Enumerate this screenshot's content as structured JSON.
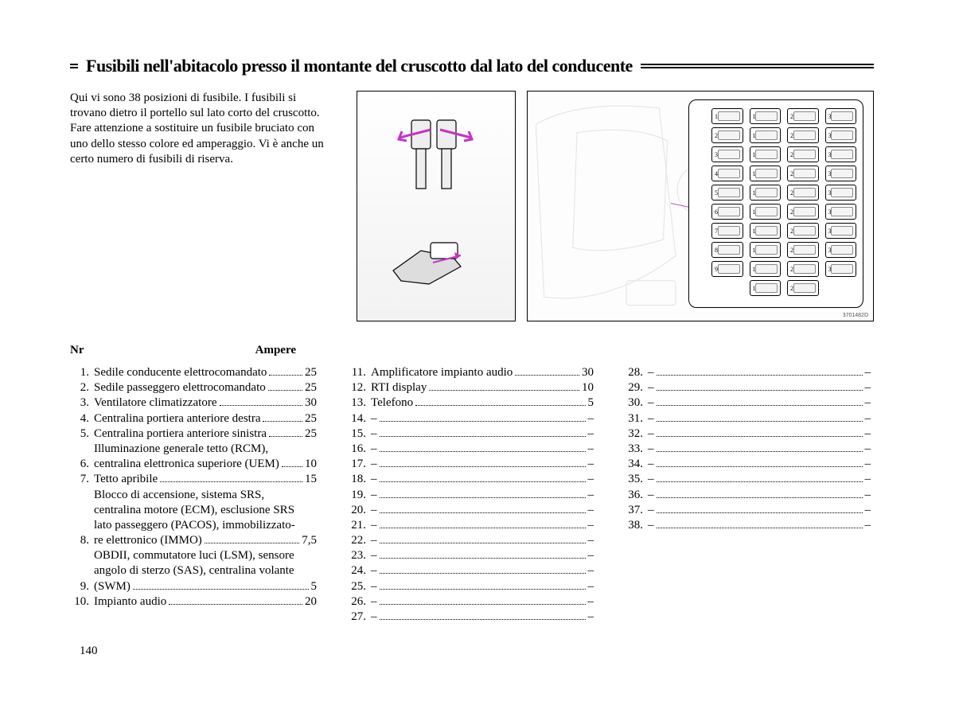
{
  "heading": "Fusibili nell'abitacolo presso il montante del cruscotto dal lato del conducente",
  "intro": "Qui vi sono 38 posizioni di fusibile. I fusibili si trovano dietro il portello sul lato corto del cruscotto. Fare attenzione a sostituire un fusibile bruciato con uno dello stesso colore ed amperaggio. Vi è anche un certo numero di fusibili di riserva.",
  "table_header": {
    "nr": "Nr",
    "ampere": "Ampere"
  },
  "page_number": "140",
  "diagram_id": "3701482D",
  "diagram": {
    "accent_color": "#c733c7",
    "fusebox_numbers": [
      [
        1,
        10,
        20,
        30
      ],
      [
        2,
        11,
        21,
        31
      ],
      [
        3,
        12,
        22,
        32
      ],
      [
        4,
        13,
        23,
        33
      ],
      [
        5,
        14,
        24,
        34
      ],
      [
        6,
        15,
        25,
        35
      ],
      [
        7,
        16,
        26,
        36
      ],
      [
        8,
        17,
        27,
        37
      ],
      [
        9,
        18,
        28,
        38
      ],
      [
        null,
        19,
        29,
        null
      ]
    ]
  },
  "fuses": {
    "col1": [
      {
        "n": "1.",
        "lines": [],
        "last": "Sedile conducente elettrocomandato",
        "v": "25"
      },
      {
        "n": "2.",
        "lines": [],
        "last": "Sedile passeggero elettrocomandato",
        "v": "25"
      },
      {
        "n": "3.",
        "lines": [],
        "last": "Ventilatore climatizzatore",
        "v": "30"
      },
      {
        "n": "4.",
        "lines": [],
        "last": "Centralina portiera anteriore destra",
        "v": "25"
      },
      {
        "n": "5.",
        "lines": [],
        "last": "Centralina portiera anteriore sinistra",
        "v": "25"
      },
      {
        "n": "6.",
        "lines": [
          "Illuminazione generale tetto (RCM),"
        ],
        "last": "centralina elettronica superiore (UEM)",
        "v": "10"
      },
      {
        "n": "7.",
        "lines": [],
        "last": "Tetto apribile",
        "v": "15"
      },
      {
        "n": "8.",
        "lines": [
          "Blocco di accensione, sistema SRS,",
          "centralina motore (ECM), esclusione SRS",
          "lato passeggero (PACOS), immobilizzato-"
        ],
        "last": "re elettronico (IMMO)",
        "v": "7,5"
      },
      {
        "n": "9.",
        "lines": [
          "OBDII, commutatore luci (LSM), sensore",
          "angolo di sterzo (SAS), centralina volante"
        ],
        "last": "(SWM)",
        "v": "5"
      },
      {
        "n": "10.",
        "lines": [],
        "last": "Impianto audio",
        "v": "20"
      }
    ],
    "col2": [
      {
        "n": "11.",
        "lines": [],
        "last": "Amplificatore impianto audio",
        "v": "30"
      },
      {
        "n": "12.",
        "lines": [],
        "last": "RTI display",
        "v": "10"
      },
      {
        "n": "13.",
        "lines": [],
        "last": "Telefono",
        "v": "5"
      },
      {
        "n": "14.",
        "lines": [],
        "last": "–",
        "v": "–"
      },
      {
        "n": "15.",
        "lines": [],
        "last": "–",
        "v": "–"
      },
      {
        "n": "16.",
        "lines": [],
        "last": "–",
        "v": "–"
      },
      {
        "n": "17.",
        "lines": [],
        "last": "–",
        "v": "–"
      },
      {
        "n": "18.",
        "lines": [],
        "last": "–",
        "v": "–"
      },
      {
        "n": "19.",
        "lines": [],
        "last": "–",
        "v": "–"
      },
      {
        "n": "20.",
        "lines": [],
        "last": "–",
        "v": "–"
      },
      {
        "n": "21.",
        "lines": [],
        "last": "–",
        "v": "–"
      },
      {
        "n": "22.",
        "lines": [],
        "last": "–",
        "v": "–"
      },
      {
        "n": "23.",
        "lines": [],
        "last": "–",
        "v": "–"
      },
      {
        "n": "24.",
        "lines": [],
        "last": "–",
        "v": "–"
      },
      {
        "n": "25.",
        "lines": [],
        "last": "–",
        "v": "–"
      },
      {
        "n": "26.",
        "lines": [],
        "last": "–",
        "v": "–"
      },
      {
        "n": "27.",
        "lines": [],
        "last": "–",
        "v": "–"
      }
    ],
    "col3": [
      {
        "n": "28.",
        "lines": [],
        "last": "–",
        "v": "–"
      },
      {
        "n": "29.",
        "lines": [],
        "last": "–",
        "v": "–"
      },
      {
        "n": "30.",
        "lines": [],
        "last": "–",
        "v": "–"
      },
      {
        "n": "31.",
        "lines": [],
        "last": "–",
        "v": "–"
      },
      {
        "n": "32.",
        "lines": [],
        "last": "–",
        "v": "–"
      },
      {
        "n": "33.",
        "lines": [],
        "last": "–",
        "v": "–"
      },
      {
        "n": "34.",
        "lines": [],
        "last": "–",
        "v": "–"
      },
      {
        "n": "35.",
        "lines": [],
        "last": "–",
        "v": "–"
      },
      {
        "n": "36.",
        "lines": [],
        "last": "–",
        "v": "–"
      },
      {
        "n": "37.",
        "lines": [],
        "last": "–",
        "v": "–"
      },
      {
        "n": "38.",
        "lines": [],
        "last": "–",
        "v": "–"
      }
    ]
  }
}
